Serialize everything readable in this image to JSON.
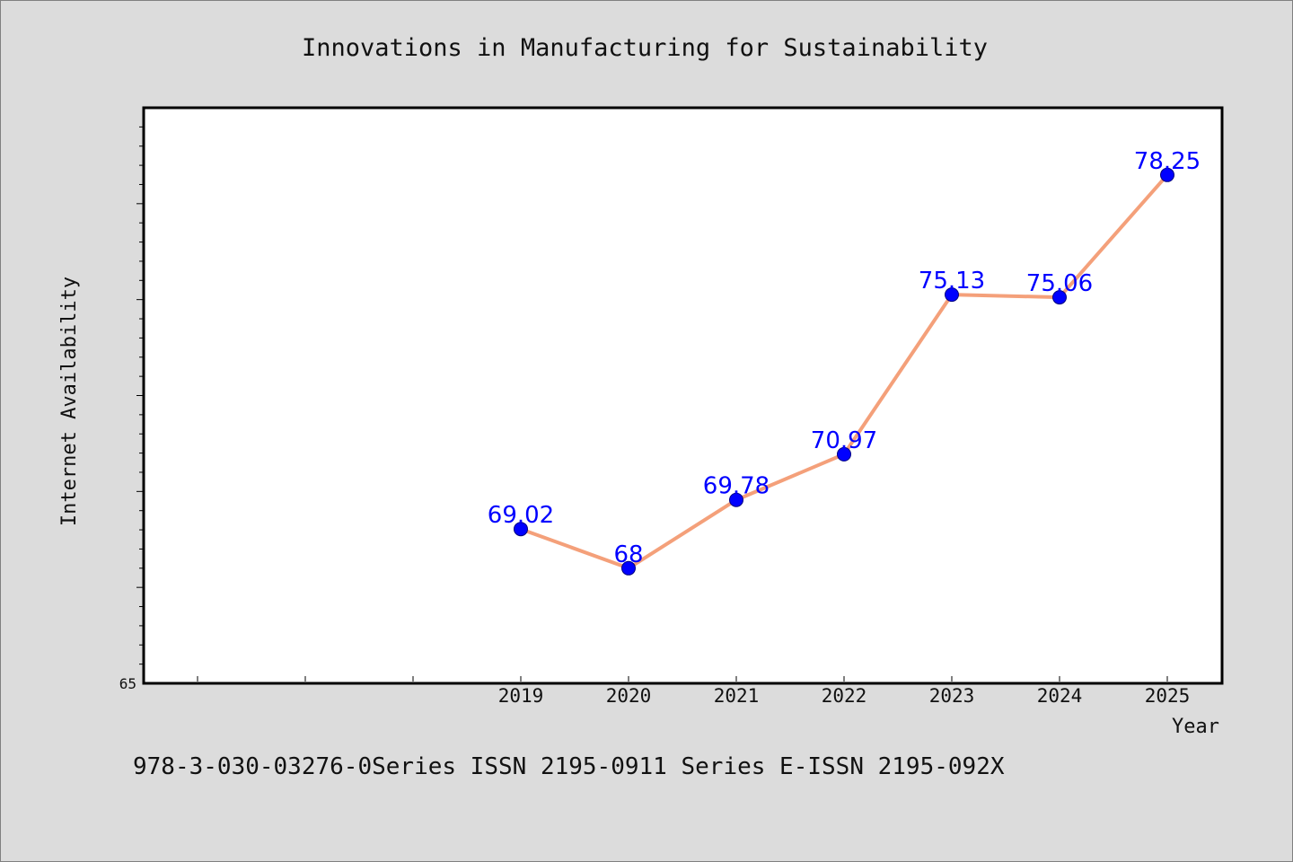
{
  "chart_data": {
    "type": "line",
    "title": "Innovations in Manufacturing for Sustainability",
    "xlabel": "Year",
    "ylabel": "Internet Availability",
    "x": [
      "2019",
      "2020",
      "2021",
      "2022",
      "2023",
      "2024",
      "2025"
    ],
    "series": [
      {
        "values": [
          69.02,
          68,
          69.78,
          70.97,
          75.13,
          75.06,
          78.25
        ],
        "labels": [
          "69.02",
          "68",
          "69.78",
          "70.97",
          "75.13",
          "75.06",
          "78.25"
        ]
      }
    ],
    "ylim": [
      65,
      80
    ],
    "y_tick_labels": [
      "65"
    ],
    "grid": false,
    "legend": "none",
    "colors": {
      "line": "#f4a07a",
      "marker": "#0000ff",
      "marker_edge": "#000080",
      "data_label": "#0000ff",
      "plot_background": "#ffffff",
      "page_background": "#dcdcdc"
    }
  },
  "footer": {
    "text": "978-3-030-03276-0Series ISSN 2195-0911 Series E-ISSN 2195-092X"
  }
}
